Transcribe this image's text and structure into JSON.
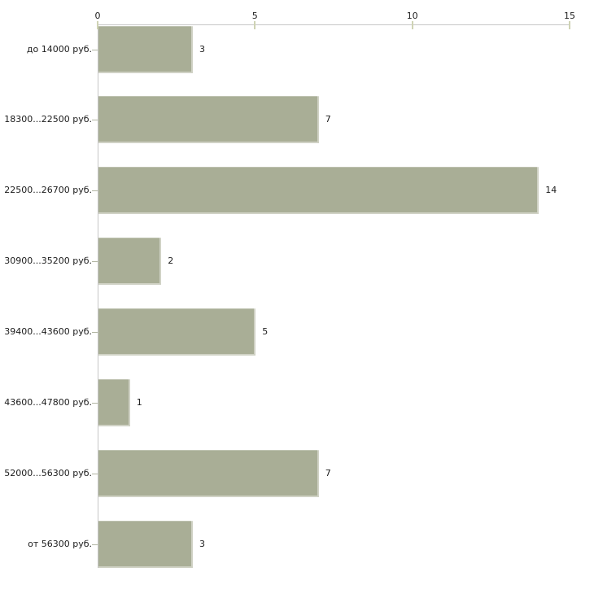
{
  "chart_data": {
    "type": "bar",
    "orientation": "horizontal",
    "title": "",
    "xlabel": "",
    "ylabel": "",
    "categories": [
      "до 14000 руб.",
      "18300...22500 руб.",
      "22500...26700 руб.",
      "30900...35200 руб.",
      "39400...43600 руб.",
      "43600...47800 руб.",
      "52000...56300 руб.",
      "от 56300 руб."
    ],
    "values": [
      3,
      7,
      14,
      2,
      5,
      1,
      7,
      3
    ],
    "value_labels": [
      "3",
      "7",
      "14",
      "2",
      "5",
      "1",
      "7",
      "3"
    ],
    "xlim": [
      0,
      15
    ],
    "x_ticks": [
      "0",
      "5",
      "10",
      "15"
    ],
    "x_tick_values": [
      0,
      5,
      10,
      15
    ],
    "axis_position": "top",
    "grid": false,
    "legend": false,
    "colors": {
      "bar_fill": "#a9ae96",
      "axis_line": "#c6c6c6",
      "x_tick_mark": "#cfd3b4",
      "y_tick_mark": "#b2b6a4",
      "text": "#1c1c1c",
      "background": "#ffffff"
    }
  }
}
